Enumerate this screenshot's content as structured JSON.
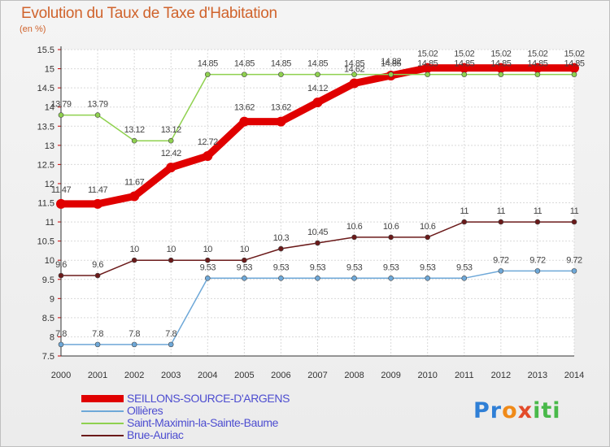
{
  "header": {
    "title": "Evolution du Taux de Taxe d'Habitation",
    "subtitle": "(en %)"
  },
  "logo": {
    "text": "Proxiti"
  },
  "chart_data": {
    "type": "line",
    "x": [
      "2000",
      "2001",
      "2002",
      "2003",
      "2004",
      "2005",
      "2006",
      "2007",
      "2008",
      "2009",
      "2010",
      "2011",
      "2012",
      "2013",
      "2014"
    ],
    "ylim": [
      7.5,
      15.5
    ],
    "yticks": [
      "7.5",
      "8",
      "8.5",
      "9",
      "9.5",
      "10",
      "10.5",
      "11",
      "11.5",
      "12",
      "12.5",
      "13",
      "13.5",
      "14",
      "14.5",
      "15",
      "15.5"
    ],
    "grid": true,
    "legend_position": "bottom-left",
    "series": [
      {
        "name": "SEILLONS-SOURCE-D'ARGENS",
        "color": "#e00000",
        "values": [
          11.47,
          11.47,
          11.67,
          12.42,
          12.72,
          13.62,
          13.62,
          14.12,
          14.62,
          14.82,
          15.02,
          15.02,
          15.02,
          15.02,
          15.02
        ],
        "labels": [
          "11.47",
          "11.47",
          "11.67",
          "12.42",
          "12.72",
          "13.62",
          "13.62",
          "14.12",
          "14.62",
          "14.82",
          "15.02",
          "15.02",
          "15.02",
          "15.02",
          "15.02"
        ]
      },
      {
        "name": "Ollières",
        "color": "#6ea8d8",
        "values": [
          7.8,
          7.8,
          7.8,
          7.8,
          9.53,
          9.53,
          9.53,
          9.53,
          9.53,
          9.53,
          9.53,
          9.53,
          9.72,
          9.72,
          9.72
        ],
        "labels": [
          "7.8",
          "7.8",
          "7.8",
          "7.8",
          "9.53",
          "9.53",
          "9.53",
          "9.53",
          "9.53",
          "9.53",
          "9.53",
          "9.53",
          "9.72",
          "9.72",
          "9.72"
        ]
      },
      {
        "name": "Saint-Maximin-la-Sainte-Baume",
        "color": "#8fd14f",
        "values": [
          13.79,
          13.79,
          13.12,
          13.12,
          14.85,
          14.85,
          14.85,
          14.85,
          14.85,
          14.85,
          14.85,
          14.85,
          14.85,
          14.85,
          14.85
        ],
        "labels": [
          "13.79",
          "13.79",
          "13.12",
          "13.12",
          "14.85",
          "14.85",
          "14.85",
          "14.85",
          "14.85",
          "14.85",
          "14.85",
          "14.85",
          "14.85",
          "14.85",
          "14.85"
        ]
      },
      {
        "name": "Brue-Auriac",
        "color": "#6b1a1a",
        "values": [
          9.6,
          9.6,
          10,
          10,
          10,
          10,
          10.3,
          10.45,
          10.6,
          10.6,
          10.6,
          11,
          11,
          11,
          11
        ],
        "labels": [
          "9.6",
          "9.6",
          "10",
          "10",
          "10",
          "10",
          "10.3",
          "10.45",
          "10.6",
          "10.6",
          "10.6",
          "11",
          "11",
          "11",
          "11"
        ]
      }
    ]
  }
}
